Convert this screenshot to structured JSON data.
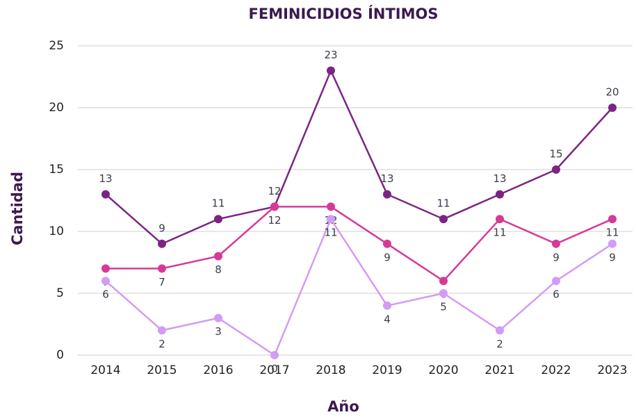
{
  "chart_data": {
    "type": "line",
    "title": "FEMINICIDIOS ÍNTIMOS",
    "x_label": "Año",
    "y_label": "Cantidad",
    "categories": [
      "2014",
      "2015",
      "2016",
      "2017",
      "2018",
      "2019",
      "2020",
      "2021",
      "2022",
      "2023"
    ],
    "series": [
      {
        "color": "#7b2583",
        "values": [
          13,
          9,
          11,
          12,
          23,
          13,
          11,
          13,
          15,
          20
        ]
      },
      {
        "color": "#d63a96",
        "values": [
          7,
          7,
          8,
          12,
          12,
          9,
          6,
          11,
          9,
          11
        ]
      },
      {
        "color": "#d39cf3",
        "values": [
          6,
          2,
          3,
          0,
          11,
          4,
          5,
          2,
          6,
          9
        ]
      }
    ],
    "ylim": [
      0,
      25
    ],
    "yticks": [
      0,
      5,
      10,
      15,
      20,
      25
    ],
    "grid": true
  }
}
